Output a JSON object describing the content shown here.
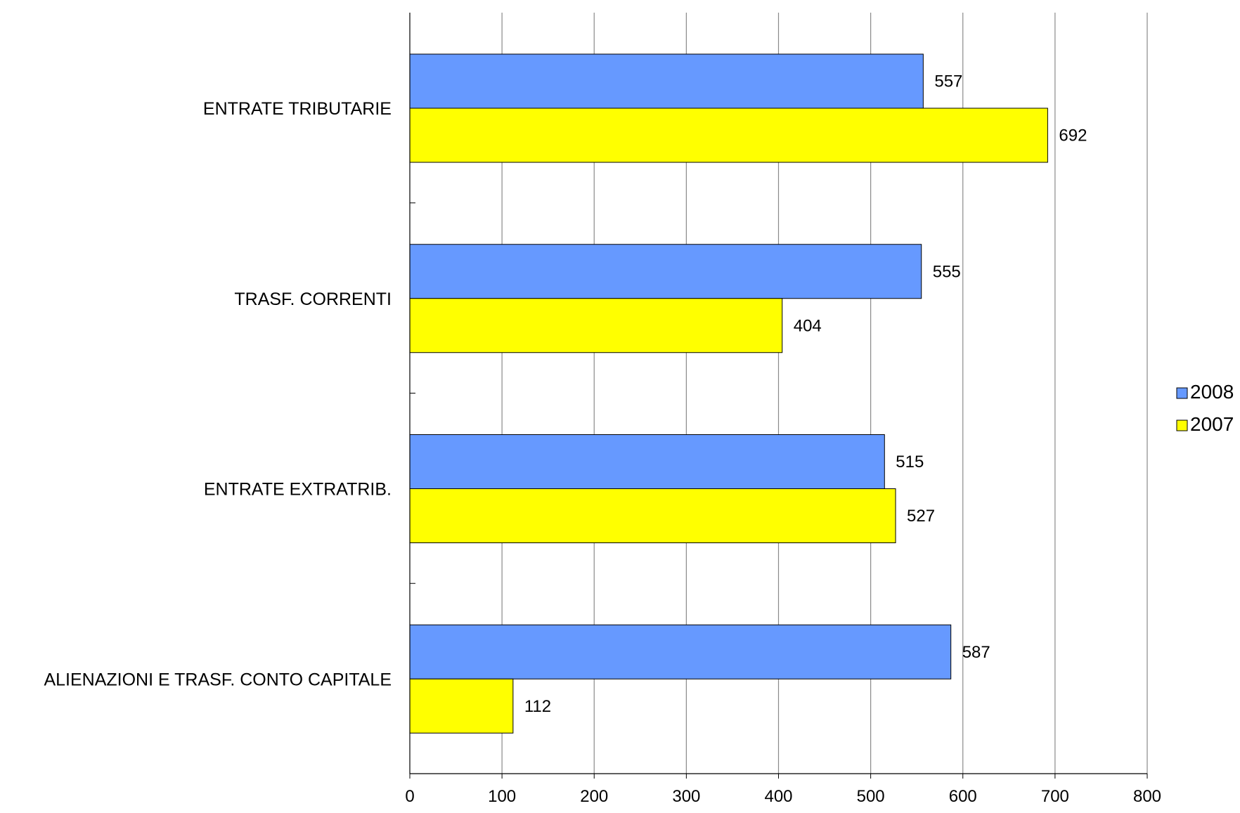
{
  "chart_data": {
    "type": "bar",
    "orientation": "horizontal",
    "categories": [
      "ENTRATE TRIBUTARIE",
      "TRASF. CORRENTI",
      "ENTRATE EXTRATRIB.",
      "ALIENAZIONI E TRASF. CONTO CAPITALE"
    ],
    "series": [
      {
        "name": "2008",
        "color": "#6699ff",
        "values": [
          557,
          555,
          515,
          587
        ]
      },
      {
        "name": "2007",
        "color": "#ffff00",
        "values": [
          692,
          404,
          527,
          112
        ]
      }
    ],
    "xlim": [
      0,
      800
    ],
    "xticks": [
      0,
      100,
      200,
      300,
      400,
      500,
      600,
      700,
      800
    ],
    "title": "",
    "xlabel": "",
    "ylabel": "",
    "grid": "vertical",
    "legend": "right"
  }
}
